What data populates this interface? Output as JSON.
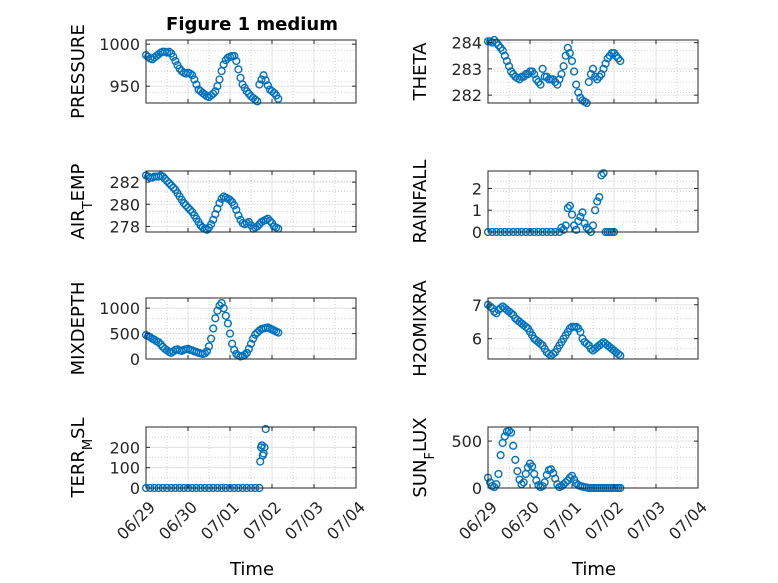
{
  "figure": {
    "title": "Figure 1 medium",
    "marker_color": "#0072BD",
    "axis_color": "#262626",
    "grid": "minor-dotted"
  },
  "x_axis": {
    "ticks": [
      "06/29",
      "06/30",
      "07/01",
      "07/02",
      "07/03",
      "07/04"
    ],
    "label": "Time"
  },
  "chart_data": [
    {
      "type": "scatter",
      "title": "Figure 1 medium",
      "ylabel": "PRESSURE",
      "ylabel_sub": "",
      "ylim": [
        930,
        1005
      ],
      "yticks": [
        950,
        1000
      ],
      "x": [
        0,
        0.05,
        0.1,
        0.15,
        0.2,
        0.25,
        0.3,
        0.35,
        0.4,
        0.45,
        0.5,
        0.55,
        0.6,
        0.65,
        0.7,
        0.75,
        0.8,
        0.85,
        0.9,
        0.95,
        1.0,
        1.05,
        1.1,
        1.15,
        1.2,
        1.25,
        1.3,
        1.35,
        1.4,
        1.45,
        1.5,
        1.55,
        1.6,
        1.65,
        1.7,
        1.75,
        1.8,
        1.85,
        1.9,
        1.95,
        2.0,
        2.05,
        2.1,
        2.15,
        2.2,
        2.25,
        2.3,
        2.35,
        2.4,
        2.45,
        2.5,
        2.55,
        2.6,
        2.65,
        2.7,
        2.75,
        2.8,
        2.85,
        2.9,
        2.95,
        3.0,
        3.05,
        3.1,
        3.15
      ],
      "y": [
        987,
        985,
        983,
        982,
        984,
        986,
        988,
        990,
        991,
        991,
        990,
        991,
        989,
        985,
        980,
        975,
        971,
        968,
        966,
        965,
        966,
        965,
        963,
        958,
        952,
        946,
        944,
        942,
        940,
        938,
        937,
        939,
        941,
        944,
        950,
        958,
        968,
        976,
        981,
        984,
        985,
        986,
        986,
        980,
        970,
        960,
        952,
        948,
        944,
        941,
        938,
        936,
        934,
        932,
        952,
        958,
        963,
        957,
        951,
        946,
        944,
        942,
        939,
        935
      ]
    },
    {
      "type": "scatter",
      "ylabel": "THETA",
      "ylabel_sub": "",
      "ylim": [
        281.7,
        284.1
      ],
      "yticks": [
        282,
        283,
        284
      ],
      "x": [
        0,
        0.05,
        0.1,
        0.15,
        0.2,
        0.25,
        0.3,
        0.35,
        0.4,
        0.45,
        0.5,
        0.55,
        0.6,
        0.65,
        0.7,
        0.75,
        0.8,
        0.85,
        0.9,
        0.95,
        1.0,
        1.05,
        1.1,
        1.15,
        1.2,
        1.25,
        1.3,
        1.35,
        1.4,
        1.45,
        1.5,
        1.55,
        1.6,
        1.65,
        1.7,
        1.75,
        1.8,
        1.85,
        1.9,
        1.95,
        2.0,
        2.05,
        2.1,
        2.15,
        2.2,
        2.25,
        2.3,
        2.35,
        2.4,
        2.45,
        2.5,
        2.55,
        2.6,
        2.65,
        2.7,
        2.75,
        2.8,
        2.85,
        2.9,
        2.95,
        3.0,
        3.05,
        3.1,
        3.15
      ],
      "y": [
        284.05,
        284.05,
        284.0,
        284.1,
        284.0,
        283.9,
        283.8,
        283.7,
        283.5,
        283.3,
        283.1,
        282.9,
        282.8,
        282.7,
        282.65,
        282.6,
        282.7,
        282.7,
        282.8,
        282.8,
        282.9,
        282.9,
        282.8,
        282.6,
        282.5,
        282.4,
        283.0,
        282.7,
        282.7,
        282.6,
        282.6,
        282.6,
        282.5,
        282.4,
        282.6,
        282.8,
        283.1,
        283.5,
        283.8,
        283.6,
        283.3,
        282.9,
        282.4,
        282.1,
        281.9,
        281.8,
        281.75,
        281.7,
        282.5,
        282.8,
        283.0,
        282.7,
        282.6,
        282.7,
        282.8,
        283.0,
        283.2,
        283.4,
        283.5,
        283.6,
        283.6,
        283.5,
        283.4,
        283.3
      ]
    },
    {
      "type": "scatter",
      "ylabel": "AIR",
      "ylabel_sub": "T",
      "ylabel_suffix": "EMP",
      "ylim": [
        277.5,
        283.0
      ],
      "yticks": [
        278,
        280,
        282
      ],
      "x": [
        0,
        0.05,
        0.1,
        0.15,
        0.2,
        0.25,
        0.3,
        0.35,
        0.4,
        0.45,
        0.5,
        0.55,
        0.6,
        0.65,
        0.7,
        0.75,
        0.8,
        0.85,
        0.9,
        0.95,
        1.0,
        1.05,
        1.1,
        1.15,
        1.2,
        1.25,
        1.3,
        1.35,
        1.4,
        1.45,
        1.5,
        1.55,
        1.6,
        1.65,
        1.7,
        1.75,
        1.8,
        1.85,
        1.9,
        1.95,
        2.0,
        2.05,
        2.1,
        2.15,
        2.2,
        2.25,
        2.3,
        2.35,
        2.4,
        2.45,
        2.5,
        2.55,
        2.6,
        2.65,
        2.7,
        2.75,
        2.8,
        2.85,
        2.9,
        2.95,
        3.0,
        3.05,
        3.1,
        3.15
      ],
      "y": [
        282.6,
        282.5,
        282.4,
        282.4,
        282.5,
        282.5,
        282.5,
        282.6,
        282.5,
        282.3,
        282.1,
        281.9,
        281.7,
        281.5,
        281.3,
        281.0,
        280.7,
        280.4,
        280.1,
        279.9,
        279.7,
        279.5,
        279.3,
        279.0,
        278.7,
        278.4,
        278.1,
        277.9,
        277.8,
        277.7,
        277.9,
        278.2,
        278.6,
        279.1,
        279.6,
        280.1,
        280.5,
        280.7,
        280.6,
        280.5,
        280.4,
        280.2,
        279.9,
        279.5,
        279.0,
        278.6,
        278.3,
        278.2,
        278.3,
        278.4,
        278.1,
        277.8,
        277.9,
        278.0,
        278.2,
        278.4,
        278.5,
        278.6,
        278.7,
        278.5,
        278.3,
        278.0,
        277.9,
        277.8
      ]
    },
    {
      "type": "scatter",
      "ylabel": "RAINFALL",
      "ylabel_sub": "",
      "ylim": [
        0,
        2.8
      ],
      "yticks": [
        0,
        1,
        2
      ],
      "x": [
        0,
        0.1,
        0.2,
        0.3,
        0.4,
        0.5,
        0.6,
        0.7,
        0.8,
        0.9,
        1.0,
        1.1,
        1.2,
        1.3,
        1.4,
        1.5,
        1.6,
        1.7,
        1.75,
        1.8,
        1.85,
        1.9,
        1.95,
        2.0,
        2.05,
        2.1,
        2.15,
        2.2,
        2.25,
        2.3,
        2.35,
        2.4,
        2.45,
        2.5,
        2.55,
        2.6,
        2.65,
        2.7,
        2.75,
        2.8,
        2.85,
        2.9,
        2.95,
        3.0
      ],
      "y": [
        0,
        0,
        0,
        0,
        0,
        0,
        0,
        0,
        0,
        0,
        0,
        0,
        0,
        0,
        0,
        0,
        0,
        0,
        0.2,
        0.1,
        0.3,
        1.1,
        1.2,
        0.8,
        0.3,
        0.1,
        0.5,
        0.7,
        0.9,
        0.4,
        0.2,
        0.1,
        0.0,
        0.3,
        1.0,
        1.4,
        1.6,
        2.6,
        2.7,
        0,
        0,
        0,
        0,
        0
      ]
    },
    {
      "type": "scatter",
      "ylabel": "MIXDEPTH",
      "ylabel_sub": "",
      "ylim": [
        0,
        1200
      ],
      "yticks": [
        0,
        500,
        1000
      ],
      "x": [
        0,
        0.05,
        0.1,
        0.15,
        0.2,
        0.25,
        0.3,
        0.35,
        0.4,
        0.45,
        0.5,
        0.55,
        0.6,
        0.65,
        0.7,
        0.75,
        0.8,
        0.85,
        0.9,
        0.95,
        1.0,
        1.05,
        1.1,
        1.15,
        1.2,
        1.25,
        1.3,
        1.35,
        1.4,
        1.45,
        1.5,
        1.55,
        1.6,
        1.65,
        1.7,
        1.75,
        1.8,
        1.85,
        1.9,
        1.95,
        2.0,
        2.05,
        2.1,
        2.15,
        2.2,
        2.25,
        2.3,
        2.35,
        2.4,
        2.45,
        2.5,
        2.55,
        2.6,
        2.65,
        2.7,
        2.75,
        2.8,
        2.85,
        2.9,
        2.95,
        3.0,
        3.05,
        3.1,
        3.15
      ],
      "y": [
        470,
        450,
        430,
        400,
        380,
        350,
        330,
        290,
        240,
        200,
        170,
        140,
        120,
        150,
        180,
        190,
        170,
        160,
        180,
        190,
        200,
        180,
        170,
        150,
        140,
        120,
        110,
        100,
        110,
        150,
        250,
        400,
        600,
        800,
        950,
        1050,
        1100,
        1000,
        850,
        700,
        500,
        300,
        180,
        100,
        70,
        50,
        60,
        80,
        120,
        200,
        300,
        400,
        480,
        520,
        560,
        590,
        600,
        610,
        620,
        600,
        580,
        560,
        540,
        520
      ]
    },
    {
      "type": "scatter",
      "ylabel": "H2OMIXRA",
      "ylabel_sub": "",
      "ylim": [
        5.4,
        7.2
      ],
      "yticks": [
        6,
        7
      ],
      "x": [
        0,
        0.05,
        0.1,
        0.15,
        0.2,
        0.25,
        0.3,
        0.35,
        0.4,
        0.45,
        0.5,
        0.55,
        0.6,
        0.65,
        0.7,
        0.75,
        0.8,
        0.85,
        0.9,
        0.95,
        1.0,
        1.05,
        1.1,
        1.15,
        1.2,
        1.25,
        1.3,
        1.35,
        1.4,
        1.45,
        1.5,
        1.55,
        1.6,
        1.65,
        1.7,
        1.75,
        1.8,
        1.85,
        1.9,
        1.95,
        2.0,
        2.05,
        2.1,
        2.15,
        2.2,
        2.25,
        2.3,
        2.35,
        2.4,
        2.45,
        2.5,
        2.55,
        2.6,
        2.65,
        2.7,
        2.75,
        2.8,
        2.85,
        2.9,
        2.95,
        3.0,
        3.05,
        3.1,
        3.15
      ],
      "y": [
        7.0,
        6.95,
        6.9,
        6.8,
        6.75,
        6.85,
        6.9,
        6.95,
        6.9,
        6.85,
        6.8,
        6.75,
        6.7,
        6.6,
        6.55,
        6.5,
        6.45,
        6.4,
        6.35,
        6.3,
        6.2,
        6.1,
        6.0,
        5.95,
        5.9,
        5.85,
        5.8,
        5.7,
        5.6,
        5.55,
        5.5,
        5.55,
        5.6,
        5.7,
        5.8,
        5.9,
        6.0,
        6.1,
        6.2,
        6.3,
        6.35,
        6.35,
        6.35,
        6.3,
        6.2,
        6.0,
        5.9,
        5.85,
        5.8,
        5.7,
        5.65,
        5.7,
        5.75,
        5.8,
        5.85,
        5.9,
        5.85,
        5.8,
        5.75,
        5.7,
        5.65,
        5.6,
        5.55,
        5.5
      ]
    },
    {
      "type": "scatter",
      "ylabel": "TERR",
      "ylabel_sub": "M",
      "ylabel_suffix": "SL",
      "ylim": [
        0,
        300
      ],
      "yticks": [
        0,
        100,
        200
      ],
      "x": [
        0,
        0.1,
        0.2,
        0.3,
        0.4,
        0.5,
        0.6,
        0.7,
        0.8,
        0.9,
        1.0,
        1.1,
        1.2,
        1.3,
        1.4,
        1.5,
        1.6,
        1.7,
        1.8,
        1.9,
        2.0,
        2.1,
        2.2,
        2.3,
        2.4,
        2.5,
        2.6,
        2.7,
        2.72,
        2.74,
        2.76,
        2.78,
        2.8,
        2.82,
        2.85
      ],
      "y": [
        0,
        0,
        0,
        0,
        0,
        0,
        0,
        0,
        0,
        0,
        0,
        0,
        0,
        0,
        0,
        0,
        0,
        0,
        0,
        0,
        0,
        0,
        0,
        0,
        0,
        0,
        0,
        0,
        130,
        200,
        210,
        160,
        170,
        200,
        290
      ]
    },
    {
      "type": "scatter",
      "ylabel": "SUN",
      "ylabel_sub": "F",
      "ylabel_suffix": "LUX",
      "ylim": [
        0,
        650
      ],
      "yticks": [
        0,
        500
      ],
      "x": [
        0,
        0.05,
        0.1,
        0.15,
        0.2,
        0.25,
        0.3,
        0.35,
        0.4,
        0.45,
        0.5,
        0.55,
        0.6,
        0.65,
        0.7,
        0.75,
        0.8,
        0.85,
        0.9,
        0.95,
        1.0,
        1.05,
        1.1,
        1.15,
        1.2,
        1.25,
        1.3,
        1.35,
        1.4,
        1.45,
        1.5,
        1.55,
        1.6,
        1.65,
        1.7,
        1.75,
        1.8,
        1.85,
        1.9,
        1.95,
        2.0,
        2.05,
        2.1,
        2.15,
        2.2,
        2.25,
        2.3,
        2.35,
        2.4,
        2.45,
        2.5,
        2.55,
        2.6,
        2.65,
        2.7,
        2.75,
        2.8,
        2.85,
        2.9,
        2.95,
        3.0,
        3.05,
        3.1,
        3.15
      ],
      "y": [
        110,
        60,
        20,
        10,
        40,
        150,
        350,
        480,
        550,
        600,
        610,
        590,
        450,
        300,
        180,
        90,
        40,
        60,
        150,
        220,
        260,
        230,
        150,
        80,
        30,
        10,
        20,
        60,
        140,
        190,
        200,
        160,
        100,
        40,
        10,
        20,
        40,
        60,
        80,
        110,
        130,
        90,
        50,
        30,
        20,
        15,
        10,
        5,
        0,
        0,
        0,
        0,
        0,
        0,
        0,
        0,
        0,
        0,
        0,
        0,
        0,
        0,
        0,
        0
      ]
    }
  ]
}
